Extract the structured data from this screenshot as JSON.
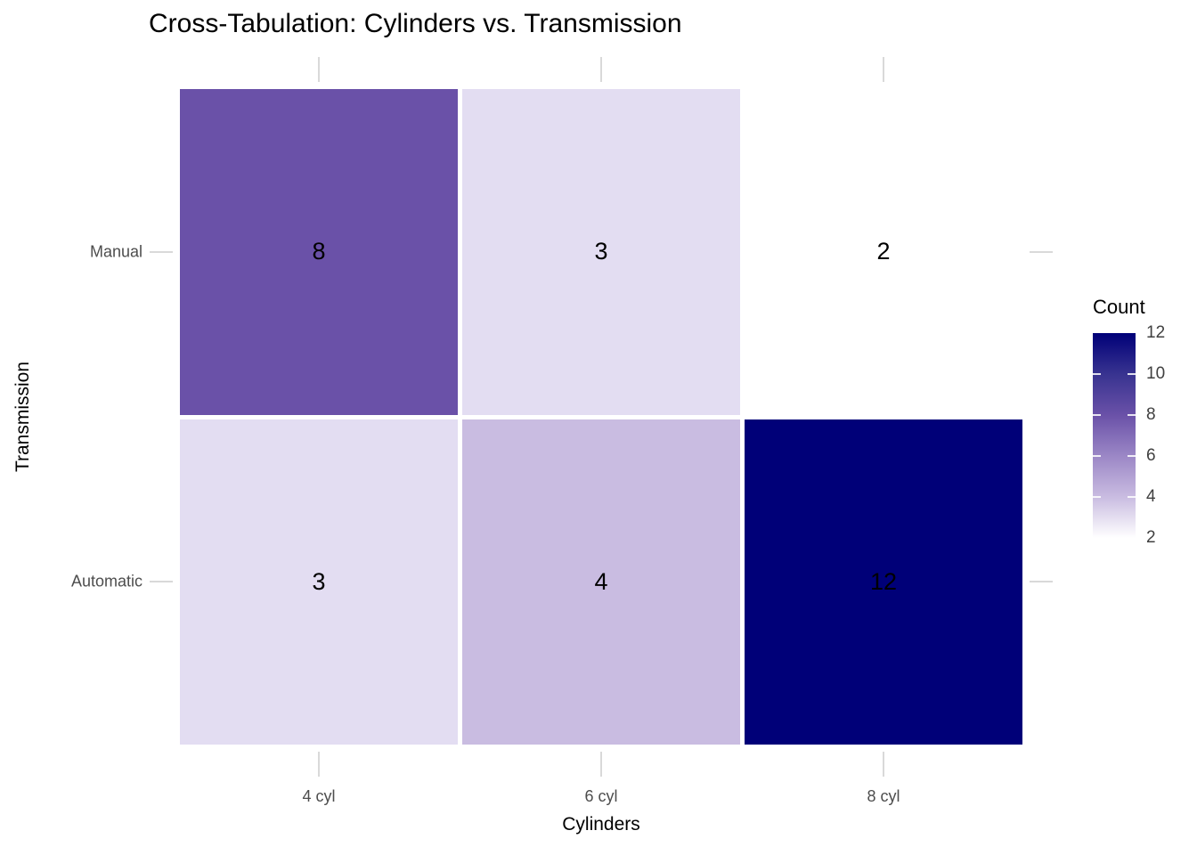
{
  "chart_data": {
    "type": "heatmap",
    "title": "Cross-Tabulation: Cylinders vs. Transmission",
    "xlabel": "Cylinders",
    "ylabel": "Transmission",
    "x_categories": [
      "4 cyl",
      "6 cyl",
      "8 cyl"
    ],
    "y_categories": [
      "Manual",
      "Automatic"
    ],
    "values": [
      [
        8,
        3,
        2
      ],
      [
        3,
        4,
        12
      ]
    ],
    "cell_colors": [
      [
        "#6a51a8",
        "#e3ddf2",
        "#ffffff"
      ],
      [
        "#e3ddf2",
        "#c9bce1",
        "#000078"
      ]
    ],
    "value_range": [
      2,
      12
    ],
    "grid": false,
    "legend": {
      "title": "Count",
      "position": "right",
      "breaks": [
        12,
        10,
        8,
        6,
        4,
        2
      ],
      "low_color": "#ffffff",
      "high_color": "#000078",
      "gradient_stops_top_to_bottom": [
        "#000078",
        "#383390",
        "#6a51a8",
        "#9b87c6",
        "#c9bce1",
        "#ffffff"
      ]
    },
    "colors": {
      "background": "#ffffff",
      "axis_tick": "#d9d9d9",
      "axis_text": "#4d4d4d",
      "title_text": "#000000",
      "cell_label_text": "#000000"
    }
  }
}
